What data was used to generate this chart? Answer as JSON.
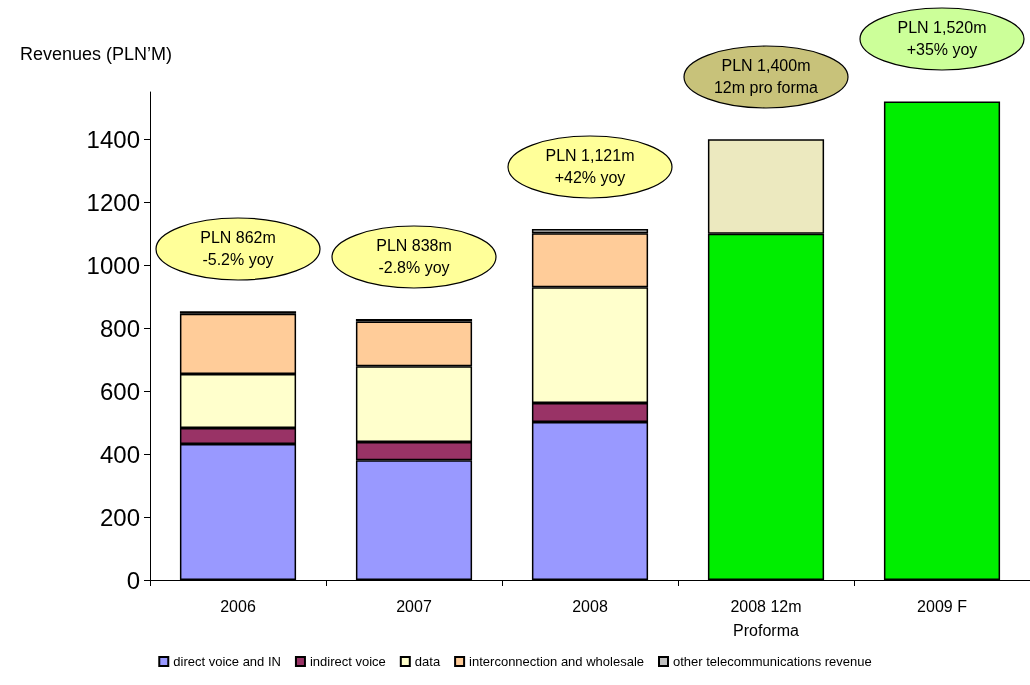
{
  "chart_data": {
    "type": "bar",
    "stacked": true,
    "ylabel": "Revenues (PLN’M)",
    "categories": [
      "2006",
      "2007",
      "2008",
      "2008 12m\nProforma",
      "2009 F"
    ],
    "series": [
      {
        "name": "direct voice and IN",
        "color": "#9999ff",
        "values": [
          432,
          380,
          502,
          null,
          null
        ]
      },
      {
        "name": "indirect voice",
        "color": "#993366",
        "values": [
          51,
          58,
          60,
          null,
          null
        ]
      },
      {
        "name": "data",
        "color": "#ffffcc",
        "values": [
          171,
          241,
          368,
          null,
          null
        ]
      },
      {
        "name": "interconnection and wholesale",
        "color": "#ffcc99",
        "values": [
          192,
          142,
          171,
          null,
          null
        ]
      },
      {
        "name": "other telecommunications revenue",
        "color": "#c0c0c0",
        "values": [
          8,
          8,
          14,
          null,
          null
        ]
      },
      {
        "color": "#00ee00",
        "values": [
          null,
          null,
          null,
          1100,
          1520
        ]
      },
      {
        "color": "#ece9bf",
        "values": [
          null,
          null,
          null,
          300,
          null
        ]
      }
    ],
    "ylim": [
      0,
      1550
    ],
    "yticks": [
      0,
      200,
      400,
      600,
      800,
      {
        "value": 1000,
        "label": "1000"
      },
      {
        "value": 1200,
        "label": "1200"
      },
      {
        "value": 1400,
        "label": "1400"
      }
    ],
    "grid": false,
    "legend": "bottom",
    "annotations": [
      "PLN 862m\n-5.2% yoy",
      "PLN 838m\n-2.8% yoy",
      "PLN 1,121m\n+42% yoy",
      "PLN 1,400m\n12m pro forma",
      "PLN 1,520m\n+35% yoy"
    ]
  }
}
